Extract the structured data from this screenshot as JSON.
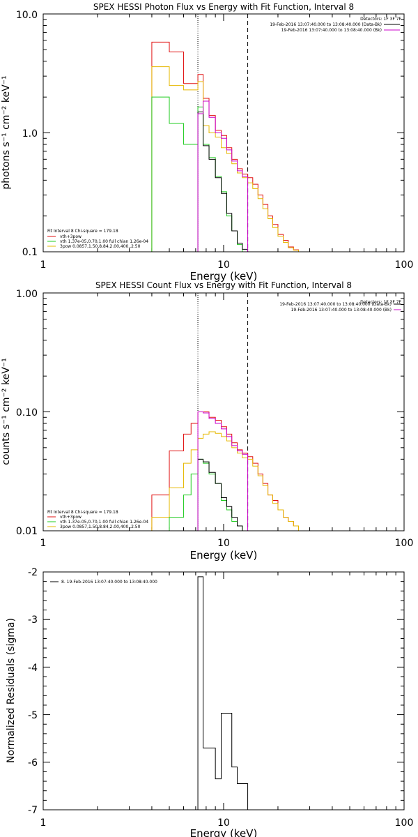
{
  "chart_data": [
    {
      "type": "line",
      "title": "SPEX HESSI Photon Flux vs Energy with Fit Function, Interval 8",
      "xlabel": "Energy (keV)",
      "ylabel": "photons s⁻¹ cm⁻² keV⁻¹",
      "xscale": "log",
      "yscale": "log",
      "xlim": [
        1,
        100
      ],
      "ylim": [
        0.1,
        10
      ],
      "xticks": [
        "1",
        "10",
        "100"
      ],
      "yticks": [
        "0.1",
        "1.0",
        "10.0"
      ],
      "vlines": [
        {
          "x": 7.2,
          "style": "dotted"
        },
        {
          "x": 13.6,
          "style": "dashed"
        }
      ],
      "header": {
        "detectors": "Detectors: 1F 3F 7F",
        "lines": [
          {
            "text": "19-Feb-2016 13:07:40.000 to 13:08:40.000 (Data-Bk)",
            "color": "#000000"
          },
          {
            "text": "19-Feb-2016 13:07:40.000 to 13:08:40.000 (Bk)",
            "color": "#cc00cc"
          }
        ]
      },
      "legend": {
        "placement": "bottom-left",
        "head": "Fit Interval  8    Chi-square = 179.18",
        "items": [
          {
            "text": "vth+3pow",
            "color": "#e01010"
          },
          {
            "text": "vth 1.37e-05,0.70,1.00  full chian 1.26e-04",
            "color": "#22cc22"
          },
          {
            "text": "3pow 0.0857,1.50,8.84,2.00,400.,2.50",
            "color": "#e6b800"
          }
        ]
      },
      "series": [
        {
          "color": "#e01010",
          "values": [
            [
              4,
              5.8
            ],
            [
              5,
              4.8
            ],
            [
              6,
              2.6
            ],
            [
              7.2,
              3.1
            ],
            [
              7.7,
              1.95
            ],
            [
              8.3,
              1.4
            ],
            [
              9,
              1.05
            ],
            [
              9.7,
              0.95
            ],
            [
              10.4,
              0.75
            ],
            [
              11.1,
              0.6
            ],
            [
              11.9,
              0.5
            ],
            [
              12.7,
              0.45
            ],
            [
              13.6,
              0.42
            ],
            [
              14.5,
              0.37
            ],
            [
              15.5,
              0.3
            ],
            [
              16.5,
              0.25
            ],
            [
              17.6,
              0.2
            ],
            [
              18.7,
              0.17
            ],
            [
              20,
              0.14
            ],
            [
              21.4,
              0.125
            ],
            [
              22.8,
              0.11
            ],
            [
              24.4,
              0.104
            ],
            [
              26,
              0.1
            ],
            [
              30,
              0.1
            ]
          ]
        },
        {
          "color": "#e6b800",
          "values": [
            [
              4,
              3.6
            ],
            [
              5,
              2.5
            ],
            [
              6,
              2.3
            ],
            [
              7.2,
              2.7
            ],
            [
              7.7,
              1.15
            ],
            [
              8.3,
              1.0
            ],
            [
              9,
              0.92
            ],
            [
              9.7,
              0.75
            ],
            [
              10.4,
              0.67
            ],
            [
              11.1,
              0.55
            ],
            [
              11.9,
              0.46
            ],
            [
              12.7,
              0.42
            ],
            [
              13.6,
              0.38
            ],
            [
              14.5,
              0.34
            ],
            [
              15.5,
              0.28
            ],
            [
              16.5,
              0.23
            ],
            [
              17.6,
              0.19
            ],
            [
              18.7,
              0.16
            ],
            [
              20,
              0.135
            ],
            [
              21.4,
              0.12
            ],
            [
              22.8,
              0.108
            ],
            [
              24.4,
              0.103
            ],
            [
              26,
              0.1
            ],
            [
              30,
              0.1
            ]
          ]
        },
        {
          "color": "#22cc22",
          "values": [
            [
              4,
              2.0
            ],
            [
              5,
              1.2
            ],
            [
              6,
              0.8
            ],
            [
              7.2,
              1.65
            ],
            [
              7.7,
              0.8
            ],
            [
              8.3,
              0.62
            ],
            [
              9,
              0.43
            ],
            [
              9.7,
              0.32
            ],
            [
              10.4,
              0.2
            ],
            [
              11.1,
              0.15
            ],
            [
              11.9,
              0.115
            ],
            [
              12.7,
              0.1
            ],
            [
              13.6,
              0.1
            ]
          ]
        },
        {
          "color": "#000000",
          "values": [
            [
              7.2,
              1.5
            ],
            [
              7.7,
              0.78
            ],
            [
              8.3,
              0.6
            ],
            [
              9,
              0.42
            ],
            [
              9.7,
              0.31
            ],
            [
              10.4,
              0.21
            ],
            [
              11.1,
              0.15
            ],
            [
              11.9,
              0.118
            ],
            [
              12.7,
              0.105
            ],
            [
              13.6,
              0.1
            ]
          ]
        },
        {
          "color": "#cc00cc",
          "values": [
            [
              7.2,
              1.45
            ],
            [
              7.7,
              1.85
            ],
            [
              8.3,
              1.35
            ],
            [
              9,
              1.0
            ],
            [
              9.7,
              0.9
            ],
            [
              10.4,
              0.72
            ],
            [
              11.1,
              0.58
            ],
            [
              11.9,
              0.48
            ],
            [
              12.7,
              0.43
            ],
            [
              13.6,
              0.1
            ]
          ]
        }
      ]
    },
    {
      "type": "line",
      "title": "SPEX HESSI Count Flux vs Energy with Fit Function, Interval 8",
      "xlabel": "Energy (keV)",
      "ylabel": "counts s⁻¹ cm⁻² keV⁻¹",
      "xscale": "log",
      "yscale": "log",
      "xlim": [
        1,
        100
      ],
      "ylim": [
        0.01,
        1
      ],
      "xticks": [
        "1",
        "10",
        "100"
      ],
      "yticks": [
        "0.01",
        "0.10",
        "1.00"
      ],
      "vlines": [
        {
          "x": 7.2,
          "style": "dotted"
        },
        {
          "x": 13.6,
          "style": "dashed"
        }
      ],
      "header": {
        "detectors": "Detectors: 1F 3F 7F",
        "lines": [
          {
            "text": "19-Feb-2016 13:07:40.000 to 13:08:40.000 (Data-Bk)",
            "color": "#000000"
          },
          {
            "text": "19-Feb-2016 13:07:40.000 to 13:08:40.000 (Bk)",
            "color": "#cc00cc"
          }
        ]
      },
      "legend": {
        "placement": "bottom-left",
        "head": "Fit Interval  8    Chi-square = 179.18",
        "items": [
          {
            "text": "vth+3pow",
            "color": "#e01010"
          },
          {
            "text": "vth 1.37e-05,0.70,1.00  full chian 1.26e-04",
            "color": "#22cc22"
          },
          {
            "text": "3pow 0.0857,1.50,8.84,2.00,400.,2.50",
            "color": "#e6b800"
          }
        ]
      },
      "series": [
        {
          "color": "#e01010",
          "values": [
            [
              4,
              0.02
            ],
            [
              5,
              0.047
            ],
            [
              6,
              0.065
            ],
            [
              6.6,
              0.08
            ],
            [
              7.2,
              0.1
            ],
            [
              7.7,
              0.1
            ],
            [
              8.3,
              0.09
            ],
            [
              9,
              0.085
            ],
            [
              9.7,
              0.075
            ],
            [
              10.4,
              0.065
            ],
            [
              11.1,
              0.055
            ],
            [
              11.9,
              0.048
            ],
            [
              12.7,
              0.045
            ],
            [
              13.6,
              0.042
            ],
            [
              14.5,
              0.037
            ],
            [
              15.5,
              0.03
            ],
            [
              16.5,
              0.025
            ],
            [
              17.6,
              0.02
            ],
            [
              18.7,
              0.018
            ],
            [
              20,
              0.015
            ],
            [
              21.4,
              0.013
            ],
            [
              22.8,
              0.012
            ],
            [
              24.4,
              0.011
            ],
            [
              26,
              0.01
            ],
            [
              30,
              0.01
            ]
          ]
        },
        {
          "color": "#e6b800",
          "values": [
            [
              4,
              0.013
            ],
            [
              5,
              0.023
            ],
            [
              6,
              0.037
            ],
            [
              6.6,
              0.048
            ],
            [
              7.2,
              0.06
            ],
            [
              7.7,
              0.065
            ],
            [
              8.3,
              0.068
            ],
            [
              9,
              0.066
            ],
            [
              9.7,
              0.062
            ],
            [
              10.4,
              0.057
            ],
            [
              11.1,
              0.05
            ],
            [
              11.9,
              0.045
            ],
            [
              12.7,
              0.041
            ],
            [
              13.6,
              0.04
            ],
            [
              14.5,
              0.035
            ],
            [
              15.5,
              0.029
            ],
            [
              16.5,
              0.024
            ],
            [
              17.6,
              0.02
            ],
            [
              18.7,
              0.017
            ],
            [
              20,
              0.015
            ],
            [
              21.4,
              0.013
            ],
            [
              22.8,
              0.012
            ],
            [
              24.4,
              0.011
            ],
            [
              26,
              0.01
            ],
            [
              30,
              0.01
            ]
          ]
        },
        {
          "color": "#22cc22",
          "values": [
            [
              5,
              0.013
            ],
            [
              6,
              0.02
            ],
            [
              6.6,
              0.03
            ],
            [
              7.2,
              0.04
            ],
            [
              7.7,
              0.037
            ],
            [
              8.3,
              0.03
            ],
            [
              9,
              0.025
            ],
            [
              9.7,
              0.018
            ],
            [
              10.4,
              0.015
            ],
            [
              11.1,
              0.012
            ],
            [
              11.9,
              0.011
            ],
            [
              12.7,
              0.01
            ],
            [
              13.6,
              0.01
            ]
          ]
        },
        {
          "color": "#000000",
          "values": [
            [
              7.2,
              0.04
            ],
            [
              7.7,
              0.038
            ],
            [
              8.3,
              0.031
            ],
            [
              9,
              0.025
            ],
            [
              9.7,
              0.019
            ],
            [
              10.4,
              0.016
            ],
            [
              11.1,
              0.013
            ],
            [
              11.9,
              0.011
            ],
            [
              12.7,
              0.01
            ],
            [
              13.6,
              0.01
            ]
          ]
        },
        {
          "color": "#cc00cc",
          "values": [
            [
              7.2,
              0.1
            ],
            [
              7.7,
              0.098
            ],
            [
              8.3,
              0.088
            ],
            [
              9,
              0.08
            ],
            [
              9.7,
              0.072
            ],
            [
              10.4,
              0.062
            ],
            [
              11.1,
              0.052
            ],
            [
              11.9,
              0.047
            ],
            [
              12.7,
              0.044
            ],
            [
              13.6,
              0.01
            ]
          ]
        }
      ]
    },
    {
      "type": "line",
      "title": "",
      "xlabel": "Energy (keV)",
      "ylabel": "Normalized Residuals (sigma)",
      "xscale": "log",
      "yscale": "linear",
      "xlim": [
        1,
        100
      ],
      "ylim": [
        -7,
        -2
      ],
      "xticks": [
        "1",
        "10",
        "100"
      ],
      "yticks": [
        "-7",
        "-6",
        "-5",
        "-4",
        "-3",
        "-2"
      ],
      "legend": {
        "placement": "top-left",
        "items": [
          {
            "text": "8. 19-Feb-2016 13:07:40.000 to 13:08:40.000",
            "color": "#000000"
          }
        ]
      },
      "series": [
        {
          "color": "#000000",
          "values": [
            [
              7.2,
              -2.1
            ],
            [
              7.7,
              -5.7
            ],
            [
              8.3,
              -5.7
            ],
            [
              9,
              -6.35
            ],
            [
              9.7,
              -4.97
            ],
            [
              10.4,
              -4.97
            ],
            [
              11.1,
              -6.1
            ],
            [
              11.9,
              -6.45
            ],
            [
              12.7,
              -6.45
            ],
            [
              13.6,
              -7
            ]
          ]
        }
      ]
    }
  ]
}
